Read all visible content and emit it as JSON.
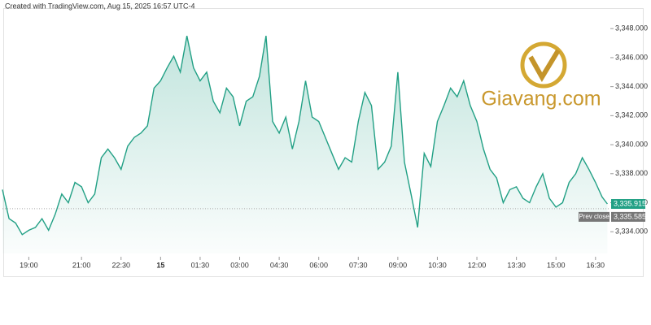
{
  "header": "Created with TradingView.com, Aug 15, 2025 16:57 UTC-4",
  "watermark": "Giavang.com",
  "chart_data": {
    "type": "area",
    "x": [
      "18:00",
      "18:15",
      "18:30",
      "18:45",
      "19:00",
      "19:15",
      "19:30",
      "19:45",
      "20:00",
      "20:15",
      "20:30",
      "20:45",
      "21:00",
      "21:15",
      "21:30",
      "21:45",
      "22:00",
      "22:15",
      "22:30",
      "22:45",
      "23:00",
      "23:15",
      "23:30",
      "23:45",
      "00:00",
      "00:15",
      "00:30",
      "00:45",
      "01:00",
      "01:15",
      "01:30",
      "01:45",
      "02:00",
      "02:15",
      "02:30",
      "02:45",
      "03:00",
      "03:15",
      "03:30",
      "03:45",
      "04:00",
      "04:15",
      "04:30",
      "04:45",
      "05:00",
      "05:15",
      "05:30",
      "05:45",
      "06:00",
      "06:15",
      "06:30",
      "06:45",
      "07:00",
      "07:15",
      "07:30",
      "07:45",
      "08:00",
      "08:15",
      "08:30",
      "08:45",
      "09:00",
      "09:15",
      "09:30",
      "09:45",
      "10:00",
      "10:15",
      "10:30",
      "10:45",
      "11:00",
      "11:15",
      "11:30",
      "11:45",
      "12:00",
      "12:15",
      "12:30",
      "12:45",
      "13:00",
      "13:15",
      "13:30",
      "13:45",
      "14:00",
      "14:15",
      "14:30",
      "14:45",
      "15:00",
      "15:15",
      "15:30",
      "15:45",
      "16:00",
      "16:15",
      "16:30",
      "16:45",
      "16:57"
    ],
    "values": [
      3336.9,
      3334.9,
      3334.6,
      3333.8,
      3334.1,
      3334.3,
      3334.9,
      3334.1,
      3335.2,
      3336.6,
      3336.0,
      3337.4,
      3337.1,
      3336.0,
      3336.6,
      3339.1,
      3339.7,
      3339.1,
      3338.3,
      3339.9,
      3340.5,
      3340.8,
      3341.3,
      3343.9,
      3344.4,
      3345.3,
      3346.1,
      3345.0,
      3347.5,
      3345.3,
      3344.4,
      3345.0,
      3343.0,
      3342.2,
      3343.9,
      3343.3,
      3341.3,
      3343.0,
      3343.3,
      3344.7,
      3347.5,
      3341.6,
      3340.8,
      3341.9,
      3339.7,
      3341.6,
      3344.4,
      3341.9,
      3341.6,
      3340.5,
      3339.4,
      3338.3,
      3339.1,
      3338.8,
      3341.6,
      3343.6,
      3342.7,
      3338.3,
      3338.8,
      3339.9,
      3345.0,
      3338.8,
      3336.6,
      3334.3,
      3339.4,
      3338.5,
      3341.6,
      3342.7,
      3343.9,
      3343.3,
      3344.4,
      3342.7,
      3341.6,
      3339.7,
      3338.3,
      3337.7,
      3336.0,
      3336.9,
      3337.1,
      3336.3,
      3336.0,
      3337.1,
      3338.0,
      3336.3,
      3335.7,
      3336.0,
      3337.4,
      3338.0,
      3339.1,
      3338.3,
      3337.4,
      3336.4,
      3335.915
    ],
    "color": "#22a085",
    "xlim": [
      "18:00",
      "17:00"
    ],
    "xticks": [
      "19:00",
      "21:00",
      "22:30",
      {
        "value": "00:00",
        "label": "15"
      },
      "01:30",
      "03:00",
      "04:30",
      "06:00",
      "07:30",
      "09:00",
      "10:30",
      "12:00",
      "13:30",
      "15:00",
      "16:30"
    ],
    "ylim": [
      3332.5,
      3349.3
    ],
    "yticks": [
      {
        "value": 3334,
        "label": "3,334.000"
      },
      {
        "value": 3336,
        "label": "3,336.000"
      },
      {
        "value": 3338,
        "label": "3,338.000"
      },
      {
        "value": 3340,
        "label": "3,340.000"
      },
      {
        "value": 3342,
        "label": "3,342.000"
      },
      {
        "value": 3344,
        "label": "3,344.000"
      },
      {
        "value": 3346,
        "label": "3,346.000"
      },
      {
        "value": 3348,
        "label": "3,348.000"
      }
    ],
    "last_price": {
      "value": 3335.915,
      "label": "3,335.915"
    },
    "prev_close": {
      "name": "Prev close",
      "value": 3335.585,
      "label": "3,335.585"
    }
  }
}
